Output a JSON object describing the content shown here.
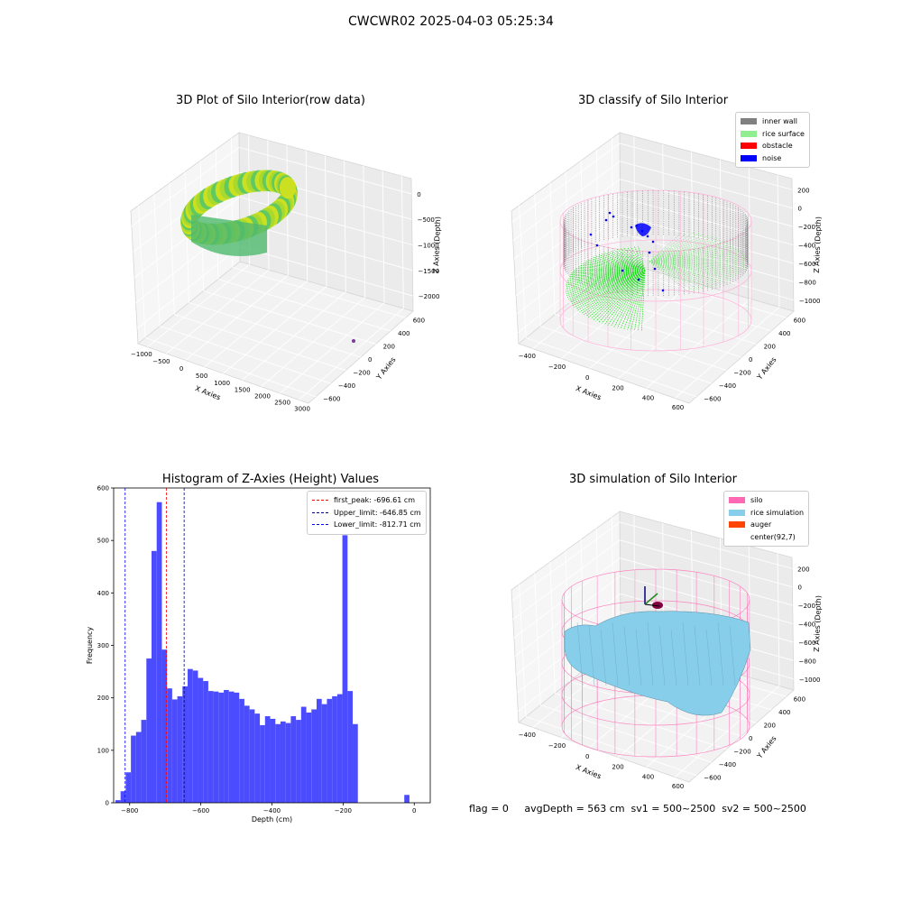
{
  "figure": {
    "suptitle": "CWCWR02 2025-04-03 05:25:34",
    "footer": "flag = 0     avgDepth = 563 cm  sv1 = 500~2500  sv2 = 500~2500"
  },
  "colors": {
    "inner_wall": "#808080",
    "rice_surface": "#90ee90",
    "obstacle": "#ff0000",
    "noise": "#0000ff",
    "silo": "#ff69b4",
    "rice_simulation": "#87ceeb",
    "auger": "#ff4500",
    "histogram_bar": "#4c4cff",
    "first_peak_line": "#ff0000",
    "upper_limit_line": "#000080",
    "lower_limit_line": "#0000ff"
  },
  "chart_data": [
    {
      "type": "scatter3d",
      "title": "3D Plot of Silo Interior(row data)",
      "xlabel": "X Axies",
      "ylabel": "Y Axies",
      "zlabel": "Z Axies (Depth)",
      "xticks": [
        "−1000",
        "−500",
        "0",
        "500",
        "1000",
        "1500",
        "2000",
        "2500",
        "3000"
      ],
      "yticks": [
        "−600",
        "−400",
        "−200",
        "0",
        "200",
        "400",
        "600"
      ],
      "zticks": [
        "0",
        "−500",
        "−1000",
        "−1500",
        "−2000"
      ],
      "colormap": "viridis"
    },
    {
      "type": "scatter3d",
      "title": "3D classify of Silo Interior",
      "xlabel": "X Axies",
      "ylabel": "Y Axies",
      "zlabel": "Z Axies (Depth)",
      "xticks": [
        "−400",
        "−200",
        "0",
        "200",
        "400",
        "600"
      ],
      "yticks": [
        "−600",
        "−400",
        "−200",
        "0",
        "200",
        "400",
        "600"
      ],
      "zticks": [
        "200",
        "0",
        "−200",
        "−400",
        "−600",
        "−800",
        "−1000"
      ],
      "legend": [
        "inner wall",
        "rice surface",
        "obstacle",
        "noise"
      ]
    },
    {
      "type": "bar",
      "title": "Histogram of Z-Axies (Height) Values",
      "xlabel": "Depth (cm)",
      "ylabel": "Frequency",
      "xlim": [
        -845,
        45
      ],
      "ylim": [
        0,
        600
      ],
      "xticks": [
        "−800",
        "−600",
        "−400",
        "−200",
        "0"
      ],
      "yticks": [
        "0",
        "100",
        "200",
        "300",
        "400",
        "500",
        "600"
      ],
      "bin_start": -840,
      "bin_width": 14.5,
      "values": [
        5,
        22,
        58,
        128,
        135,
        158,
        275,
        480,
        573,
        292,
        218,
        197,
        203,
        222,
        255,
        252,
        238,
        232,
        213,
        212,
        210,
        215,
        212,
        210,
        198,
        185,
        178,
        170,
        148,
        165,
        160,
        150,
        155,
        152,
        165,
        158,
        183,
        172,
        178,
        198,
        188,
        198,
        203,
        207,
        510,
        213,
        150,
        0,
        0,
        0,
        0,
        0,
        0,
        0,
        0,
        0,
        15
      ],
      "legend": [
        "first_peak: -696.61 cm",
        "Upper_limit: -646.85 cm",
        "Lower_limit: -812.71 cm"
      ],
      "vlines": [
        -696.61,
        -646.85,
        -812.71
      ]
    },
    {
      "type": "surface3d",
      "title": "3D simulation of Silo Interior",
      "xlabel": "X Axies",
      "ylabel": "Y Axies",
      "zlabel": "Z Axies (Depth)",
      "xticks": [
        "−400",
        "−200",
        "0",
        "200",
        "400",
        "600"
      ],
      "yticks": [
        "−600",
        "−400",
        "−200",
        "0",
        "200",
        "400",
        "600"
      ],
      "zticks": [
        "200",
        "0",
        "−200",
        "−400",
        "−600",
        "−800",
        "−1000"
      ],
      "legend": [
        "silo",
        "rice simulation",
        "auger",
        "center(92,7)"
      ]
    }
  ]
}
